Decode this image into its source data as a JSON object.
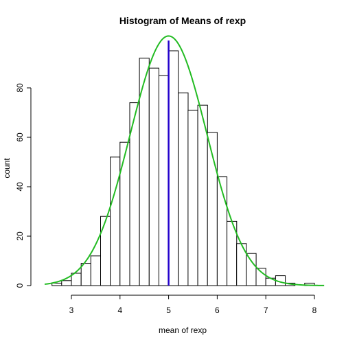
{
  "chart_data": {
    "type": "bar",
    "title": "Histogram of Means of rexp",
    "xlabel": "mean of rexp",
    "ylabel": "count",
    "xlim": [
      2.45,
      8.2
    ],
    "ylim": [
      0,
      100
    ],
    "xticks": [
      3,
      4,
      5,
      6,
      7,
      8
    ],
    "yticks": [
      0,
      20,
      40,
      60,
      80
    ],
    "bin_width": 0.2,
    "bins": [
      {
        "start": 2.6,
        "end": 2.8,
        "count": 1
      },
      {
        "start": 2.8,
        "end": 3.0,
        "count": 2
      },
      {
        "start": 3.0,
        "end": 3.2,
        "count": 5
      },
      {
        "start": 3.2,
        "end": 3.4,
        "count": 9
      },
      {
        "start": 3.4,
        "end": 3.6,
        "count": 12
      },
      {
        "start": 3.6,
        "end": 3.8,
        "count": 28
      },
      {
        "start": 3.8,
        "end": 4.0,
        "count": 52
      },
      {
        "start": 4.0,
        "end": 4.2,
        "count": 58
      },
      {
        "start": 4.2,
        "end": 4.4,
        "count": 74
      },
      {
        "start": 4.4,
        "end": 4.6,
        "count": 92
      },
      {
        "start": 4.6,
        "end": 4.8,
        "count": 88
      },
      {
        "start": 4.8,
        "end": 5.0,
        "count": 85
      },
      {
        "start": 5.0,
        "end": 5.2,
        "count": 95
      },
      {
        "start": 5.2,
        "end": 5.4,
        "count": 78
      },
      {
        "start": 5.4,
        "end": 5.6,
        "count": 71
      },
      {
        "start": 5.6,
        "end": 5.8,
        "count": 73
      },
      {
        "start": 5.8,
        "end": 6.0,
        "count": 62
      },
      {
        "start": 6.0,
        "end": 6.2,
        "count": 44
      },
      {
        "start": 6.2,
        "end": 6.4,
        "count": 26
      },
      {
        "start": 6.4,
        "end": 6.6,
        "count": 17
      },
      {
        "start": 6.6,
        "end": 6.8,
        "count": 13
      },
      {
        "start": 6.8,
        "end": 7.0,
        "count": 7
      },
      {
        "start": 7.0,
        "end": 7.2,
        "count": 3
      },
      {
        "start": 7.2,
        "end": 7.4,
        "count": 4
      },
      {
        "start": 7.4,
        "end": 7.6,
        "count": 1
      },
      {
        "start": 7.6,
        "end": 7.8,
        "count": 0
      },
      {
        "start": 7.8,
        "end": 8.0,
        "count": 1
      }
    ],
    "normal_curve": {
      "mean": 5.0,
      "sd": 0.79,
      "peak_count": 101,
      "color": "#22bb22"
    },
    "mean_line": {
      "x": 5.0,
      "color": "#2200cc"
    }
  }
}
